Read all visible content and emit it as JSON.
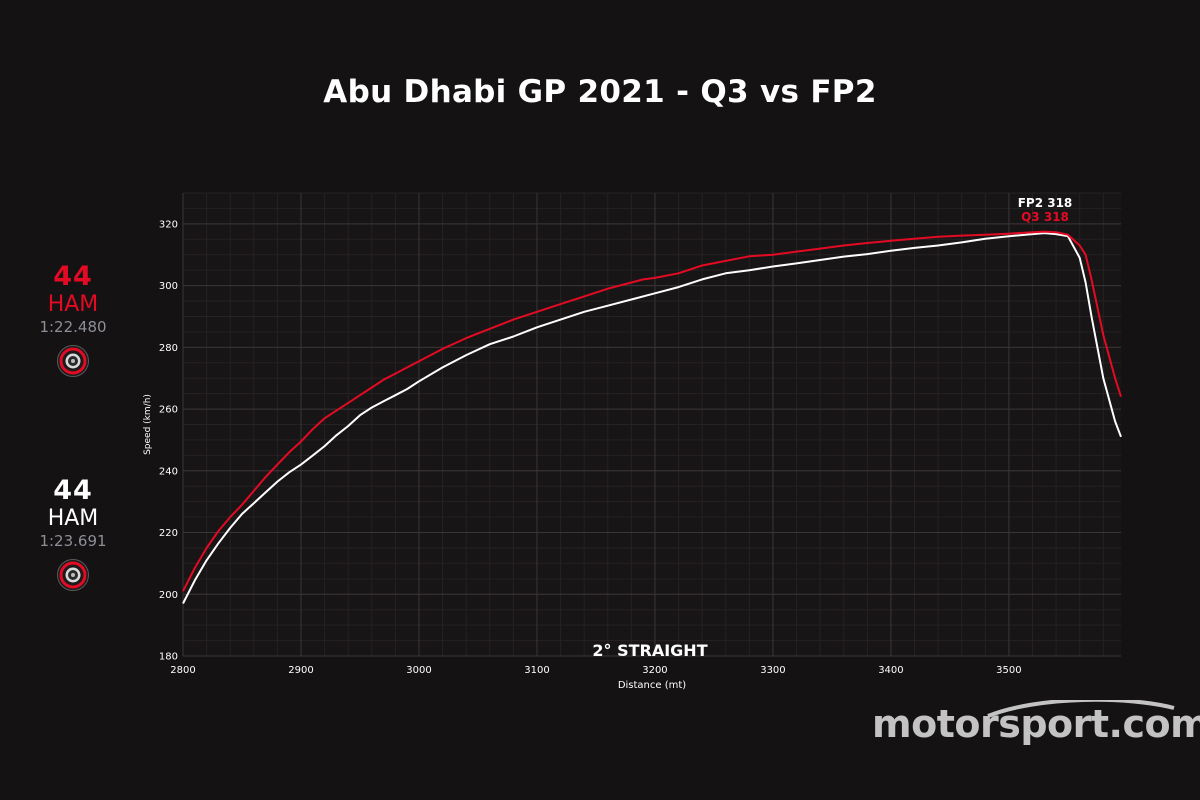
{
  "title": "Abu Dhabi GP 2021 - Q3 vs FP2",
  "colors": {
    "background": "#141213",
    "q3": "#e30b23",
    "fp2": "#ffffff",
    "grid": "#3a3637"
  },
  "drivers": [
    {
      "id": "q3",
      "number": "44",
      "code": "HAM",
      "lap_time": "1:22.480",
      "color": "#e30b23",
      "tyre_icon": "soft-tyre-icon"
    },
    {
      "id": "fp2",
      "number": "44",
      "code": "HAM",
      "lap_time": "1:23.691",
      "color": "#ffffff",
      "tyre_icon": "soft-tyre-icon"
    }
  ],
  "watermark": "motorsport.com",
  "chart_data": {
    "type": "line",
    "xlabel": "Distance (mt)",
    "ylabel": "Speed (km/h)",
    "xlim": [
      2800,
      3595
    ],
    "ylim": [
      180,
      330
    ],
    "xticks": [
      2800,
      2900,
      3000,
      3100,
      3200,
      3300,
      3400,
      3500
    ],
    "yticks": [
      180,
      200,
      220,
      240,
      260,
      280,
      300,
      320
    ],
    "grid": true,
    "annotation": "2° STRAIGHT",
    "top_labels": [
      {
        "text": "FP2 318",
        "color": "#ffffff"
      },
      {
        "text": "Q3 318",
        "color": "#e30b23"
      }
    ],
    "series": [
      {
        "name": "Q3",
        "color": "#e30b23",
        "x": [
          2800,
          2810,
          2820,
          2830,
          2840,
          2850,
          2860,
          2870,
          2880,
          2890,
          2900,
          2910,
          2920,
          2930,
          2940,
          2950,
          2960,
          2970,
          2980,
          2990,
          3000,
          3020,
          3040,
          3060,
          3080,
          3100,
          3120,
          3140,
          3160,
          3180,
          3190,
          3200,
          3220,
          3240,
          3260,
          3280,
          3300,
          3320,
          3340,
          3360,
          3380,
          3400,
          3420,
          3440,
          3460,
          3480,
          3500,
          3520,
          3530,
          3540,
          3550,
          3560,
          3565,
          3570,
          3580,
          3590,
          3595
        ],
        "y": [
          201,
          208.5,
          215,
          220.5,
          225,
          229,
          233.5,
          238,
          242,
          246,
          249.5,
          253.5,
          257,
          259.5,
          262,
          264.5,
          267,
          269.5,
          271.5,
          273.5,
          275.5,
          279.5,
          283,
          286,
          289,
          291.5,
          294,
          296.5,
          299,
          301,
          302,
          302.5,
          304,
          306.5,
          308,
          309.5,
          310,
          311,
          312,
          313,
          313.8,
          314.5,
          315.2,
          315.8,
          316.2,
          316.5,
          316.8,
          317.3,
          317.5,
          317.3,
          316.5,
          313,
          310,
          302,
          284,
          270,
          264
        ]
      },
      {
        "name": "FP2",
        "color": "#ffffff",
        "x": [
          2800,
          2810,
          2820,
          2830,
          2840,
          2850,
          2860,
          2870,
          2880,
          2890,
          2900,
          2910,
          2920,
          2930,
          2940,
          2950,
          2960,
          2970,
          2980,
          2990,
          3000,
          3020,
          3040,
          3060,
          3080,
          3100,
          3120,
          3140,
          3160,
          3180,
          3200,
          3220,
          3240,
          3260,
          3280,
          3300,
          3320,
          3340,
          3360,
          3380,
          3400,
          3420,
          3440,
          3460,
          3480,
          3500,
          3520,
          3530,
          3540,
          3550,
          3560,
          3565,
          3570,
          3580,
          3590,
          3595
        ],
        "y": [
          197,
          204.5,
          211,
          216.5,
          221.5,
          226,
          229.5,
          233,
          236.5,
          239.5,
          242,
          245,
          248,
          251.5,
          254.5,
          258,
          260.5,
          262.5,
          264.5,
          266.5,
          269,
          273.5,
          277.5,
          281,
          283.5,
          286.5,
          289,
          291.5,
          293.5,
          295.5,
          297.5,
          299.5,
          302,
          304,
          305,
          306.2,
          307.2,
          308.3,
          309.4,
          310.2,
          311.3,
          312.2,
          313,
          314,
          315.2,
          316,
          316.7,
          317,
          316.7,
          316,
          309,
          301,
          290,
          270,
          256,
          251
        ]
      }
    ]
  }
}
